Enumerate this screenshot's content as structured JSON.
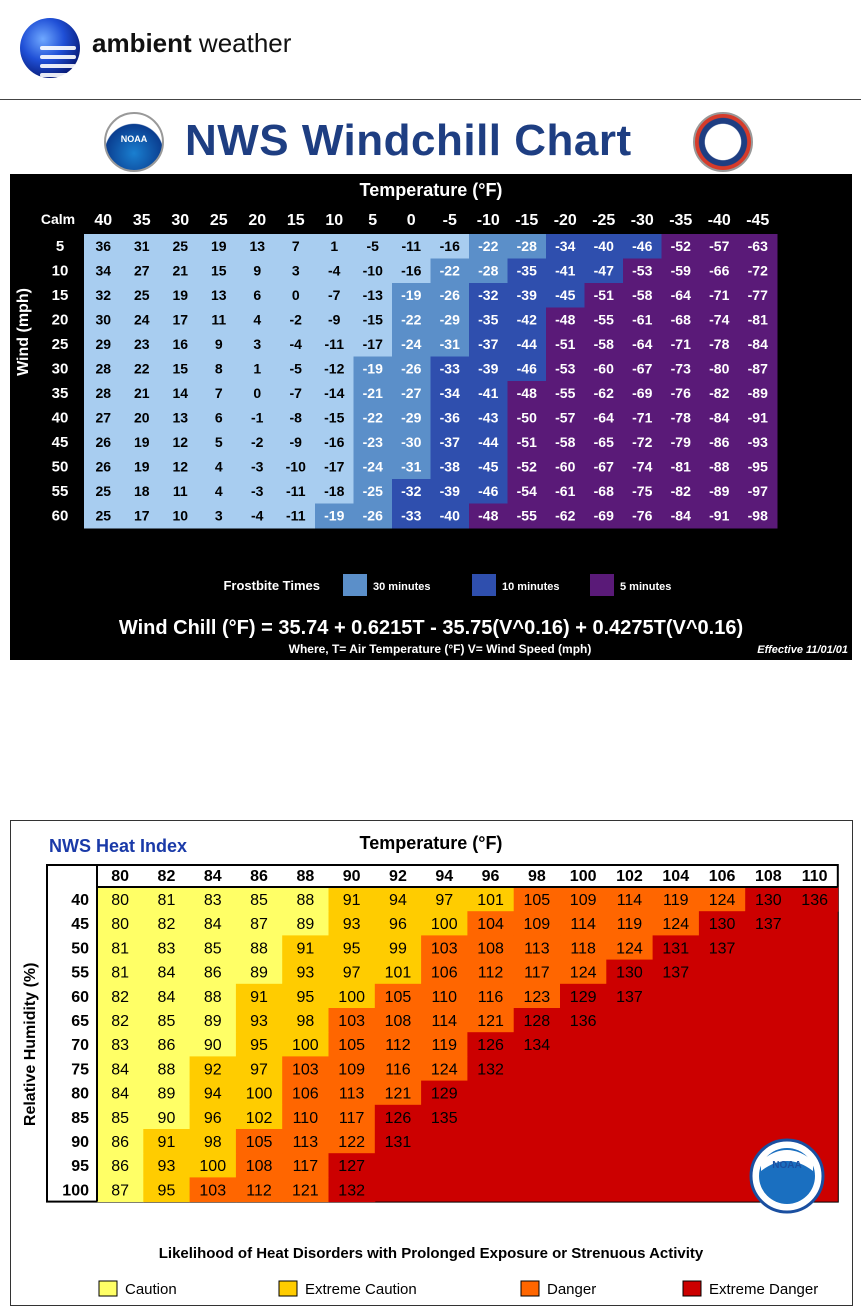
{
  "header": {
    "brand_bold": "ambient",
    "brand_rest": " weather"
  },
  "chart_data": [
    {
      "type": "heatmap",
      "title": "NWS Windchill Chart",
      "xlabel": "Temperature (°F)",
      "ylabel": "Wind (mph)",
      "corner_label": "Calm",
      "x": [
        40,
        35,
        30,
        25,
        20,
        15,
        10,
        5,
        0,
        -5,
        -10,
        -15,
        -20,
        -25,
        -30,
        -35,
        -40,
        -45
      ],
      "y": [
        5,
        10,
        15,
        20,
        25,
        30,
        35,
        40,
        45,
        50,
        55,
        60
      ],
      "values": [
        [
          36,
          31,
          25,
          19,
          13,
          7,
          1,
          -5,
          -11,
          -16,
          -22,
          -28,
          -34,
          -40,
          -46,
          -52,
          -57,
          -63
        ],
        [
          34,
          27,
          21,
          15,
          9,
          3,
          -4,
          -10,
          -16,
          -22,
          -28,
          -35,
          -41,
          -47,
          -53,
          -59,
          -66,
          -72
        ],
        [
          32,
          25,
          19,
          13,
          6,
          0,
          -7,
          -13,
          -19,
          -26,
          -32,
          -39,
          -45,
          -51,
          -58,
          -64,
          -71,
          -77
        ],
        [
          30,
          24,
          17,
          11,
          4,
          -2,
          -9,
          -15,
          -22,
          -29,
          -35,
          -42,
          -48,
          -55,
          -61,
          -68,
          -74,
          -81
        ],
        [
          29,
          23,
          16,
          9,
          3,
          -4,
          -11,
          -17,
          -24,
          -31,
          -37,
          -44,
          -51,
          -58,
          -64,
          -71,
          -78,
          -84
        ],
        [
          28,
          22,
          15,
          8,
          1,
          -5,
          -12,
          -19,
          -26,
          -33,
          -39,
          -46,
          -53,
          -60,
          -67,
          -73,
          -80,
          -87
        ],
        [
          28,
          21,
          14,
          7,
          0,
          -7,
          -14,
          -21,
          -27,
          -34,
          -41,
          -48,
          -55,
          -62,
          -69,
          -76,
          -82,
          -89
        ],
        [
          27,
          20,
          13,
          6,
          -1,
          -8,
          -15,
          -22,
          -29,
          -36,
          -43,
          -50,
          -57,
          -64,
          -71,
          -78,
          -84,
          -91
        ],
        [
          26,
          19,
          12,
          5,
          -2,
          -9,
          -16,
          -23,
          -30,
          -37,
          -44,
          -51,
          -58,
          -65,
          -72,
          -79,
          -86,
          -93
        ],
        [
          26,
          19,
          12,
          4,
          -3,
          -10,
          -17,
          -24,
          -31,
          -38,
          -45,
          -52,
          -60,
          -67,
          -74,
          -81,
          -88,
          -95
        ],
        [
          25,
          18,
          11,
          4,
          -3,
          -11,
          -18,
          -25,
          -32,
          -39,
          -46,
          -54,
          -61,
          -68,
          -75,
          -82,
          -89,
          -97
        ],
        [
          25,
          17,
          10,
          3,
          -4,
          -11,
          -19,
          -26,
          -33,
          -40,
          -48,
          -55,
          -62,
          -69,
          -76,
          -84,
          -91,
          -98
        ]
      ],
      "zones": [
        {
          "label": "30 minutes",
          "color": "#5b8fc9"
        },
        {
          "label": "10 minutes",
          "color": "#2f4fae"
        },
        {
          "label": "5 minutes",
          "color": "#5a1a78"
        }
      ],
      "no_frostbite_color": "#a8cdf0",
      "legend_title": "Frostbite Times",
      "formula": "Wind Chill (°F) = 35.74 + 0.6215T - 35.75(V^0.16) + 0.4275T(V^0.16)",
      "formula_note": "Where, T= Air Temperature (°F)  V= Wind Speed (mph)",
      "effective": "Effective 11/01/01"
    },
    {
      "type": "heatmap",
      "title": "NWS Heat Index",
      "xlabel": "Temperature (°F)",
      "ylabel": "Relative Humidity (%)",
      "x": [
        80,
        82,
        84,
        86,
        88,
        90,
        92,
        94,
        96,
        98,
        100,
        102,
        104,
        106,
        108,
        110
      ],
      "y": [
        40,
        45,
        50,
        55,
        60,
        65,
        70,
        75,
        80,
        85,
        90,
        95,
        100
      ],
      "values": [
        [
          80,
          81,
          83,
          85,
          88,
          91,
          94,
          97,
          101,
          105,
          109,
          114,
          119,
          124,
          130,
          136
        ],
        [
          80,
          82,
          84,
          87,
          89,
          93,
          96,
          100,
          104,
          109,
          114,
          119,
          124,
          130,
          137,
          null
        ],
        [
          81,
          83,
          85,
          88,
          91,
          95,
          99,
          103,
          108,
          113,
          118,
          124,
          131,
          137,
          null,
          null
        ],
        [
          81,
          84,
          86,
          89,
          93,
          97,
          101,
          106,
          112,
          117,
          124,
          130,
          137,
          null,
          null,
          null
        ],
        [
          82,
          84,
          88,
          91,
          95,
          100,
          105,
          110,
          116,
          123,
          129,
          137,
          null,
          null,
          null,
          null
        ],
        [
          82,
          85,
          89,
          93,
          98,
          103,
          108,
          114,
          121,
          128,
          136,
          null,
          null,
          null,
          null,
          null
        ],
        [
          83,
          86,
          90,
          95,
          100,
          105,
          112,
          119,
          126,
          134,
          null,
          null,
          null,
          null,
          null,
          null
        ],
        [
          84,
          88,
          92,
          97,
          103,
          109,
          116,
          124,
          132,
          null,
          null,
          null,
          null,
          null,
          null,
          null
        ],
        [
          84,
          89,
          94,
          100,
          106,
          113,
          121,
          129,
          null,
          null,
          null,
          null,
          null,
          null,
          null,
          null
        ],
        [
          85,
          90,
          96,
          102,
          110,
          117,
          126,
          135,
          null,
          null,
          null,
          null,
          null,
          null,
          null,
          null
        ],
        [
          86,
          91,
          98,
          105,
          113,
          122,
          131,
          null,
          null,
          null,
          null,
          null,
          null,
          null,
          null,
          null
        ],
        [
          86,
          93,
          100,
          108,
          117,
          127,
          null,
          null,
          null,
          null,
          null,
          null,
          null,
          null,
          null,
          null
        ],
        [
          87,
          95,
          103,
          112,
          121,
          132,
          null,
          null,
          null,
          null,
          null,
          null,
          null,
          null,
          null,
          null
        ]
      ],
      "categories": [
        {
          "label": "Caution",
          "color": "#ffff66",
          "min": 80
        },
        {
          "label": "Extreme Caution",
          "color": "#ffcc00",
          "min": 91
        },
        {
          "label": "Danger",
          "color": "#ff6600",
          "min": 103
        },
        {
          "label": "Extreme Danger",
          "color": "#cc0000",
          "min": 126
        }
      ],
      "footnote": "Likelihood of Heat Disorders with Prolonged Exposure or Strenuous Activity",
      "logo_text": "NOAA"
    }
  ]
}
